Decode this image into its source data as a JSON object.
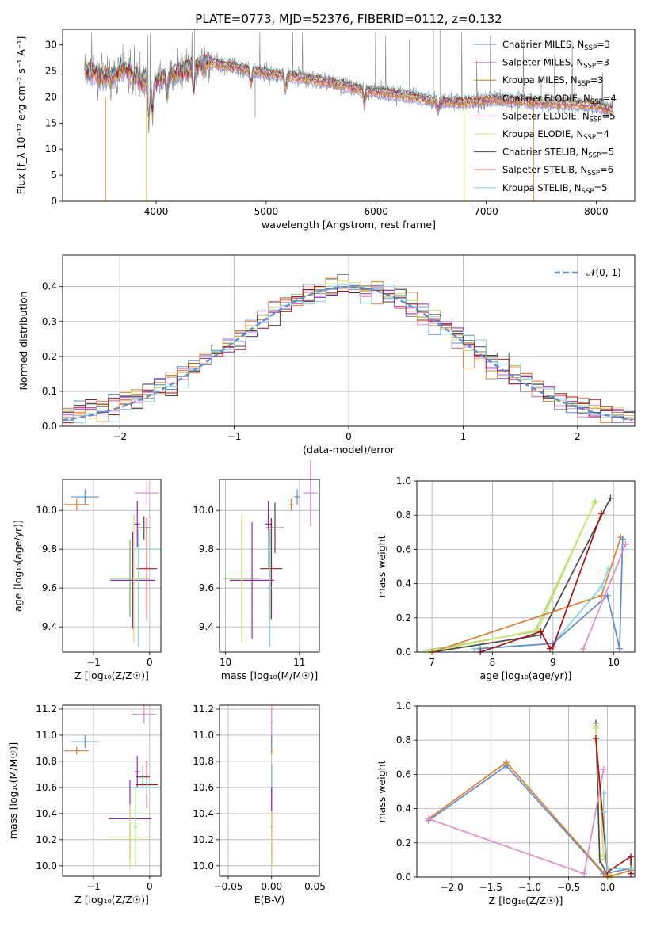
{
  "figure": {
    "title": "PLATE=0773, MJD=52376, FIBERID=0112, z=0.132",
    "colors": [
      "#5b8ed8",
      "#e87c2a",
      "#e889c8",
      "#8a8a8a",
      "#e07d2a",
      "#a020c0",
      "#d4e06a",
      "#4a4a4a",
      "#b01010",
      "#7cd6e0",
      "#9be07a",
      "#b8860b"
    ]
  },
  "chart_data": [
    {
      "id": "spectrum",
      "type": "line",
      "title": "PLATE=0773, MJD=52376, FIBERID=0112, z=0.132",
      "xlabel": "wavelength [Angstrom, rest frame]",
      "ylabel": "Flux [f_λ 10⁻¹⁷ erg cm⁻² s⁻¹ A⁻¹]",
      "xlim": [
        3150,
        8350
      ],
      "ylim": [
        0,
        33
      ],
      "xticks": [
        "4000",
        "5000",
        "6000",
        "7000",
        "8000"
      ],
      "yticks": [
        "0",
        "5",
        "10",
        "15",
        "20",
        "25",
        "30"
      ],
      "legend": "upper-right",
      "series": [
        {
          "name": "Chabrier MILES, N_SSP=3",
          "label_main": "Chabrier MILES, N",
          "label_sub": "SSP",
          "label_tail": "=3",
          "color": "#5b8ed8"
        },
        {
          "name": "Salpeter MILES, N_SSP=3",
          "label_main": "Salpeter MILES, N",
          "label_sub": "SSP",
          "label_tail": "=3",
          "color": "#e889c8"
        },
        {
          "name": "Kroupa MILES, N_SSP=3",
          "label_main": "Kroupa MILES, N",
          "label_sub": "SSP",
          "label_tail": "=3",
          "color": "#b8860b"
        },
        {
          "name": "Chabrier ELODIE, N_SSP=4",
          "label_main": "Chabrier ELODIE, N",
          "label_sub": "SSP",
          "label_tail": "=4",
          "color": "#e07d2a"
        },
        {
          "name": "Salpeter ELODIE, N_SSP=5",
          "label_main": "Salpeter ELODIE, N",
          "label_sub": "SSP",
          "label_tail": "=5",
          "color": "#a020c0"
        },
        {
          "name": "Kroupa ELODIE, N_SSP=4",
          "label_main": "Kroupa ELODIE, N",
          "label_sub": "SSP",
          "label_tail": "=4",
          "color": "#d4e06a"
        },
        {
          "name": "Chabrier STELIB, N_SSP=5",
          "label_main": "Chabrier STELIB, N",
          "label_sub": "SSP",
          "label_tail": "=5",
          "color": "#4a4a4a"
        },
        {
          "name": "Salpeter STELIB, N_SSP=6",
          "label_main": "Salpeter STELIB, N",
          "label_sub": "SSP",
          "label_tail": "=6",
          "color": "#b01010"
        },
        {
          "name": "Kroupa STELIB, N_SSP=5",
          "label_main": "Kroupa STELIB, N",
          "label_sub": "SSP",
          "label_tail": "=5",
          "color": "#7cd6e0"
        }
      ],
      "continuum": [
        [
          3350,
          25.2
        ],
        [
          3600,
          23.5
        ],
        [
          3700,
          25.6
        ],
        [
          3800,
          24.0
        ],
        [
          3950,
          22.6
        ],
        [
          4100,
          24.3
        ],
        [
          4300,
          25.4
        ],
        [
          4500,
          26.7
        ],
        [
          4700,
          25.8
        ],
        [
          5000,
          24.6
        ],
        [
          5300,
          23.8
        ],
        [
          5600,
          22.8
        ],
        [
          5900,
          21.3
        ],
        [
          6200,
          20.6
        ],
        [
          6500,
          19.3
        ],
        [
          6800,
          19.0
        ],
        [
          7100,
          19.6
        ],
        [
          7500,
          19.0
        ],
        [
          8000,
          18.4
        ],
        [
          8150,
          17.5
        ]
      ]
    },
    {
      "id": "residuals",
      "type": "line",
      "xlabel": "(data-model)/error",
      "ylabel": "Normed distribution",
      "xlim": [
        -2.5,
        2.5
      ],
      "ylim": [
        0,
        0.49
      ],
      "xticks": [
        "−2",
        "−1",
        "0",
        "1",
        "2"
      ],
      "yticks": [
        "0.0",
        "0.1",
        "0.2",
        "0.3",
        "0.4"
      ],
      "legend": "upper-right",
      "legend_label": "𝒩(0, 1)",
      "reference_curve": "N(0,1) gaussian, dashed"
    },
    {
      "id": "age-vs-z",
      "type": "scatter",
      "xlabel": "Z [log₁₀(Z/Z☉)]",
      "ylabel": "age [log₁₀(age/yr)]",
      "xlim": [
        -1.55,
        0.2
      ],
      "ylim": [
        9.27,
        10.16
      ],
      "xticks": [
        "−1",
        "0"
      ],
      "yticks": [
        "9.4",
        "9.6",
        "9.8",
        "10.0"
      ],
      "points": [
        {
          "x": -1.15,
          "xerr": 0.25,
          "y": 10.07,
          "yerr": 0.04,
          "color": "#5b8ed8"
        },
        {
          "x": -1.3,
          "xerr": 0.22,
          "y": 10.03,
          "yerr": 0.03,
          "color": "#e07d2a"
        },
        {
          "x": -0.05,
          "xerr": 0.22,
          "y": 10.09,
          "yerr": 0.06,
          "color": "#e889c8"
        },
        {
          "x": -0.22,
          "xerr": 0.05,
          "y": 9.93,
          "yerr": 0.12,
          "color": "#a020c0"
        },
        {
          "x": -0.1,
          "xerr": 0.12,
          "y": 9.91,
          "yerr": 0.06,
          "color": "#4a4a4a"
        },
        {
          "x": -0.05,
          "xerr": 0.25,
          "y": 9.8,
          "yerr": 0.1,
          "color": "#7cd6e0"
        },
        {
          "x": -0.05,
          "xerr": 0.18,
          "y": 9.7,
          "yerr": 0.26,
          "color": "#b01010"
        },
        {
          "x": -0.35,
          "xerr": 0.35,
          "y": 9.65,
          "yerr": 0.2,
          "color": "#6abf4b"
        },
        {
          "x": -0.3,
          "xerr": 0.4,
          "y": 9.64,
          "yerr": 0.25,
          "color": "#a020c0"
        },
        {
          "x": -0.28,
          "xerr": 0.05,
          "y": 9.65,
          "yerr": 0.33,
          "color": "#d4e06a"
        },
        {
          "x": -0.2,
          "xerr": 0.03,
          "y": 9.6,
          "yerr": 0.3,
          "color": "#7cd6e0"
        }
      ]
    },
    {
      "id": "age-vs-mass",
      "type": "scatter",
      "xlabel": "mass [log₁₀(M/M☉)]",
      "ylabel": "",
      "xlim": [
        9.92,
        11.27
      ],
      "ylim": [
        9.27,
        10.16
      ],
      "xticks": [
        "10",
        "11"
      ],
      "yticks": [
        "9.4",
        "9.6",
        "9.8",
        "10.0"
      ],
      "points": [
        {
          "x": 10.97,
          "xerr": 0.04,
          "y": 10.07,
          "yerr": 0.04,
          "color": "#5b8ed8"
        },
        {
          "x": 10.89,
          "xerr": 0.02,
          "y": 10.03,
          "yerr": 0.03,
          "color": "#e07d2a"
        },
        {
          "x": 11.15,
          "xerr": 0.1,
          "y": 10.09,
          "yerr": 0.17,
          "color": "#e889c8"
        },
        {
          "x": 10.67,
          "xerr": 0.12,
          "y": 9.91,
          "yerr": 0.13,
          "color": "#4a4a4a"
        },
        {
          "x": 10.58,
          "xerr": 0.04,
          "y": 9.93,
          "yerr": 0.12,
          "color": "#a020c0"
        },
        {
          "x": 10.58,
          "xerr": 0.03,
          "y": 9.8,
          "yerr": 0.1,
          "color": "#7cd6e0"
        },
        {
          "x": 10.62,
          "xerr": 0.15,
          "y": 9.7,
          "yerr": 0.26,
          "color": "#b01010"
        },
        {
          "x": 10.22,
          "xerr": 0.25,
          "y": 9.65,
          "yerr": 0.3,
          "color": "#6abf4b"
        },
        {
          "x": 10.36,
          "xerr": 0.3,
          "y": 9.64,
          "yerr": 0.3,
          "color": "#a020c0"
        },
        {
          "x": 10.22,
          "xerr": 0.02,
          "y": 9.65,
          "yerr": 0.33,
          "color": "#d4e06a"
        },
        {
          "x": 10.6,
          "xerr": 0.04,
          "y": 9.6,
          "yerr": 0.3,
          "color": "#7cd6e0"
        }
      ]
    },
    {
      "id": "weight-vs-age",
      "type": "line",
      "xlabel": "age [log₁₀(age/yr)]",
      "ylabel": "mass weight",
      "xlim": [
        6.75,
        10.35
      ],
      "ylim": [
        0,
        1.0
      ],
      "xticks": [
        "7",
        "8",
        "9",
        "10"
      ],
      "yticks": [
        "0.0",
        "0.2",
        "0.4",
        "0.6",
        "0.8",
        "1.0"
      ],
      "series": [
        {
          "color": "#9be07a",
          "x": [
            6.9,
            8.7,
            9.7
          ],
          "y": [
            0.01,
            0.12,
            0.88
          ]
        },
        {
          "color": "#d4e06a",
          "x": [
            6.95,
            8.75,
            9.68
          ],
          "y": [
            0.0,
            0.13,
            0.87
          ]
        },
        {
          "color": "#4a4a4a",
          "x": [
            7.0,
            8.8,
            9.95
          ],
          "y": [
            0.0,
            0.1,
            0.9
          ]
        },
        {
          "color": "#e07d2a",
          "x": [
            7.0,
            9.8,
            10.12
          ],
          "y": [
            0.0,
            0.33,
            0.67
          ]
        },
        {
          "color": "#7cd6e0",
          "x": [
            7.7,
            9.0,
            9.8,
            9.92
          ],
          "y": [
            0.02,
            0.05,
            0.38,
            0.49
          ]
        },
        {
          "color": "#5b8ed8",
          "x": [
            7.8,
            9.0,
            9.9,
            10.1,
            10.15
          ],
          "y": [
            0.02,
            0.05,
            0.33,
            0.02,
            0.66
          ]
        },
        {
          "color": "#b01010",
          "x": [
            7.8,
            8.8,
            8.95,
            9.0,
            9.8
          ],
          "y": [
            0.0,
            0.12,
            0.02,
            0.03,
            0.81
          ]
        },
        {
          "color": "#e889c8",
          "x": [
            9.5,
            10.2
          ],
          "y": [
            0.02,
            0.63
          ]
        }
      ]
    },
    {
      "id": "mass-vs-z",
      "type": "scatter",
      "xlabel": "Z [log₁₀(Z/Z☉)]",
      "ylabel": "mass [log₁₀(M/M☉)]",
      "xlim": [
        -1.55,
        0.2
      ],
      "ylim": [
        9.92,
        11.23
      ],
      "xticks": [
        "−1",
        "0"
      ],
      "yticks": [
        "10.0",
        "10.2",
        "10.4",
        "10.6",
        "10.8",
        "11.0",
        "11.2"
      ],
      "points": [
        {
          "x": -1.15,
          "xerr": 0.25,
          "y": 10.95,
          "yerr": 0.05,
          "color": "#5b8ed8"
        },
        {
          "x": -1.3,
          "xerr": 0.22,
          "y": 10.88,
          "yerr": 0.03,
          "color": "#e07d2a"
        },
        {
          "x": -0.1,
          "xerr": 0.22,
          "y": 11.16,
          "yerr": 0.07,
          "color": "#e889c8"
        },
        {
          "x": -0.22,
          "xerr": 0.05,
          "y": 10.72,
          "yerr": 0.12,
          "color": "#a020c0"
        },
        {
          "x": -0.12,
          "xerr": 0.12,
          "y": 10.68,
          "yerr": 0.08,
          "color": "#4a4a4a"
        },
        {
          "x": -0.05,
          "xerr": 0.2,
          "y": 10.62,
          "yerr": 0.18,
          "color": "#b01010"
        },
        {
          "x": -0.05,
          "xerr": 0.25,
          "y": 10.6,
          "yerr": 0.06,
          "color": "#7cd6e0"
        },
        {
          "x": -0.35,
          "xerr": 0.38,
          "y": 10.36,
          "yerr": 0.3,
          "color": "#a020c0"
        },
        {
          "x": -0.35,
          "xerr": 0.38,
          "y": 10.22,
          "yerr": 0.25,
          "color": "#d4e06a"
        },
        {
          "x": -0.25,
          "xerr": 0.03,
          "y": 10.3,
          "yerr": 0.3,
          "color": "#9be07a"
        }
      ]
    },
    {
      "id": "mass-vs-ebv",
      "type": "scatter",
      "xlabel": "E(B-V)",
      "ylabel": "",
      "xlim": [
        -0.06,
        0.055
      ],
      "ylim": [
        9.92,
        11.23
      ],
      "xticks": [
        "−0.05",
        "0.00",
        "0.05"
      ],
      "yticks": [
        "10.0",
        "10.2",
        "10.4",
        "10.6",
        "10.8",
        "11.0",
        "11.2"
      ],
      "points": [
        {
          "x": 0.0,
          "xerr": 0.001,
          "y": 11.1,
          "yerr": 0.12,
          "color": "#e889c8"
        },
        {
          "x": 0.0,
          "xerr": 0.001,
          "y": 10.95,
          "yerr": 0.05,
          "color": "#5b8ed8"
        },
        {
          "x": 0.0,
          "xerr": 0.001,
          "y": 10.88,
          "yerr": 0.03,
          "color": "#e07d2a"
        },
        {
          "x": 0.0,
          "xerr": 0.001,
          "y": 10.6,
          "yerr": 0.18,
          "color": "#b01010"
        },
        {
          "x": 0.0,
          "xerr": 0.001,
          "y": 10.6,
          "yerr": 0.18,
          "color": "#7cd6e0"
        },
        {
          "x": 0.0,
          "xerr": 0.001,
          "y": 10.3,
          "yerr": 0.3,
          "color": "#a020c0"
        },
        {
          "x": 0.0,
          "xerr": 0.001,
          "y": 10.2,
          "yerr": 0.22,
          "color": "#d4e06a"
        }
      ]
    },
    {
      "id": "weight-vs-z",
      "type": "line",
      "xlabel": "Z [log₁₀(Z/Z☉)]",
      "ylabel": "mass weight",
      "xlim": [
        -2.45,
        0.35
      ],
      "ylim": [
        0,
        1.0
      ],
      "xticks": [
        "−2.0",
        "−1.5",
        "−1.0",
        "−0.5",
        "0.0"
      ],
      "yticks": [
        "0.0",
        "0.2",
        "0.4",
        "0.6",
        "0.8",
        "1.0"
      ],
      "series": [
        {
          "color": "#4a4a4a",
          "x": [
            -0.15,
            -0.1,
            0.0
          ],
          "y": [
            0.9,
            0.1,
            0.01
          ]
        },
        {
          "color": "#9be07a",
          "x": [
            -0.15,
            -0.05,
            0.05
          ],
          "y": [
            0.88,
            0.12,
            0.01
          ]
        },
        {
          "color": "#d4e06a",
          "x": [
            -0.15,
            -0.05,
            0.05
          ],
          "y": [
            0.87,
            0.13,
            0.0
          ]
        },
        {
          "color": "#5b8ed8",
          "x": [
            -2.3,
            -1.3,
            -0.05,
            0.3
          ],
          "y": [
            0.33,
            0.65,
            0.02,
            0.05
          ]
        },
        {
          "color": "#e07d2a",
          "x": [
            -2.3,
            -1.3,
            0.0,
            0.3
          ],
          "y": [
            0.34,
            0.67,
            0.0,
            0.04
          ]
        },
        {
          "color": "#e889c8",
          "x": [
            -2.3,
            -0.3,
            -0.05
          ],
          "y": [
            0.34,
            0.02,
            0.63
          ]
        },
        {
          "color": "#b01010",
          "x": [
            -0.15,
            0.0,
            0.3,
            0.3
          ],
          "y": [
            0.81,
            0.03,
            0.12,
            0.02
          ]
        },
        {
          "color": "#7cd6e0",
          "x": [
            -0.05,
            -0.05,
            0.0,
            0.3
          ],
          "y": [
            0.49,
            0.38,
            0.05,
            0.05
          ]
        }
      ]
    }
  ]
}
